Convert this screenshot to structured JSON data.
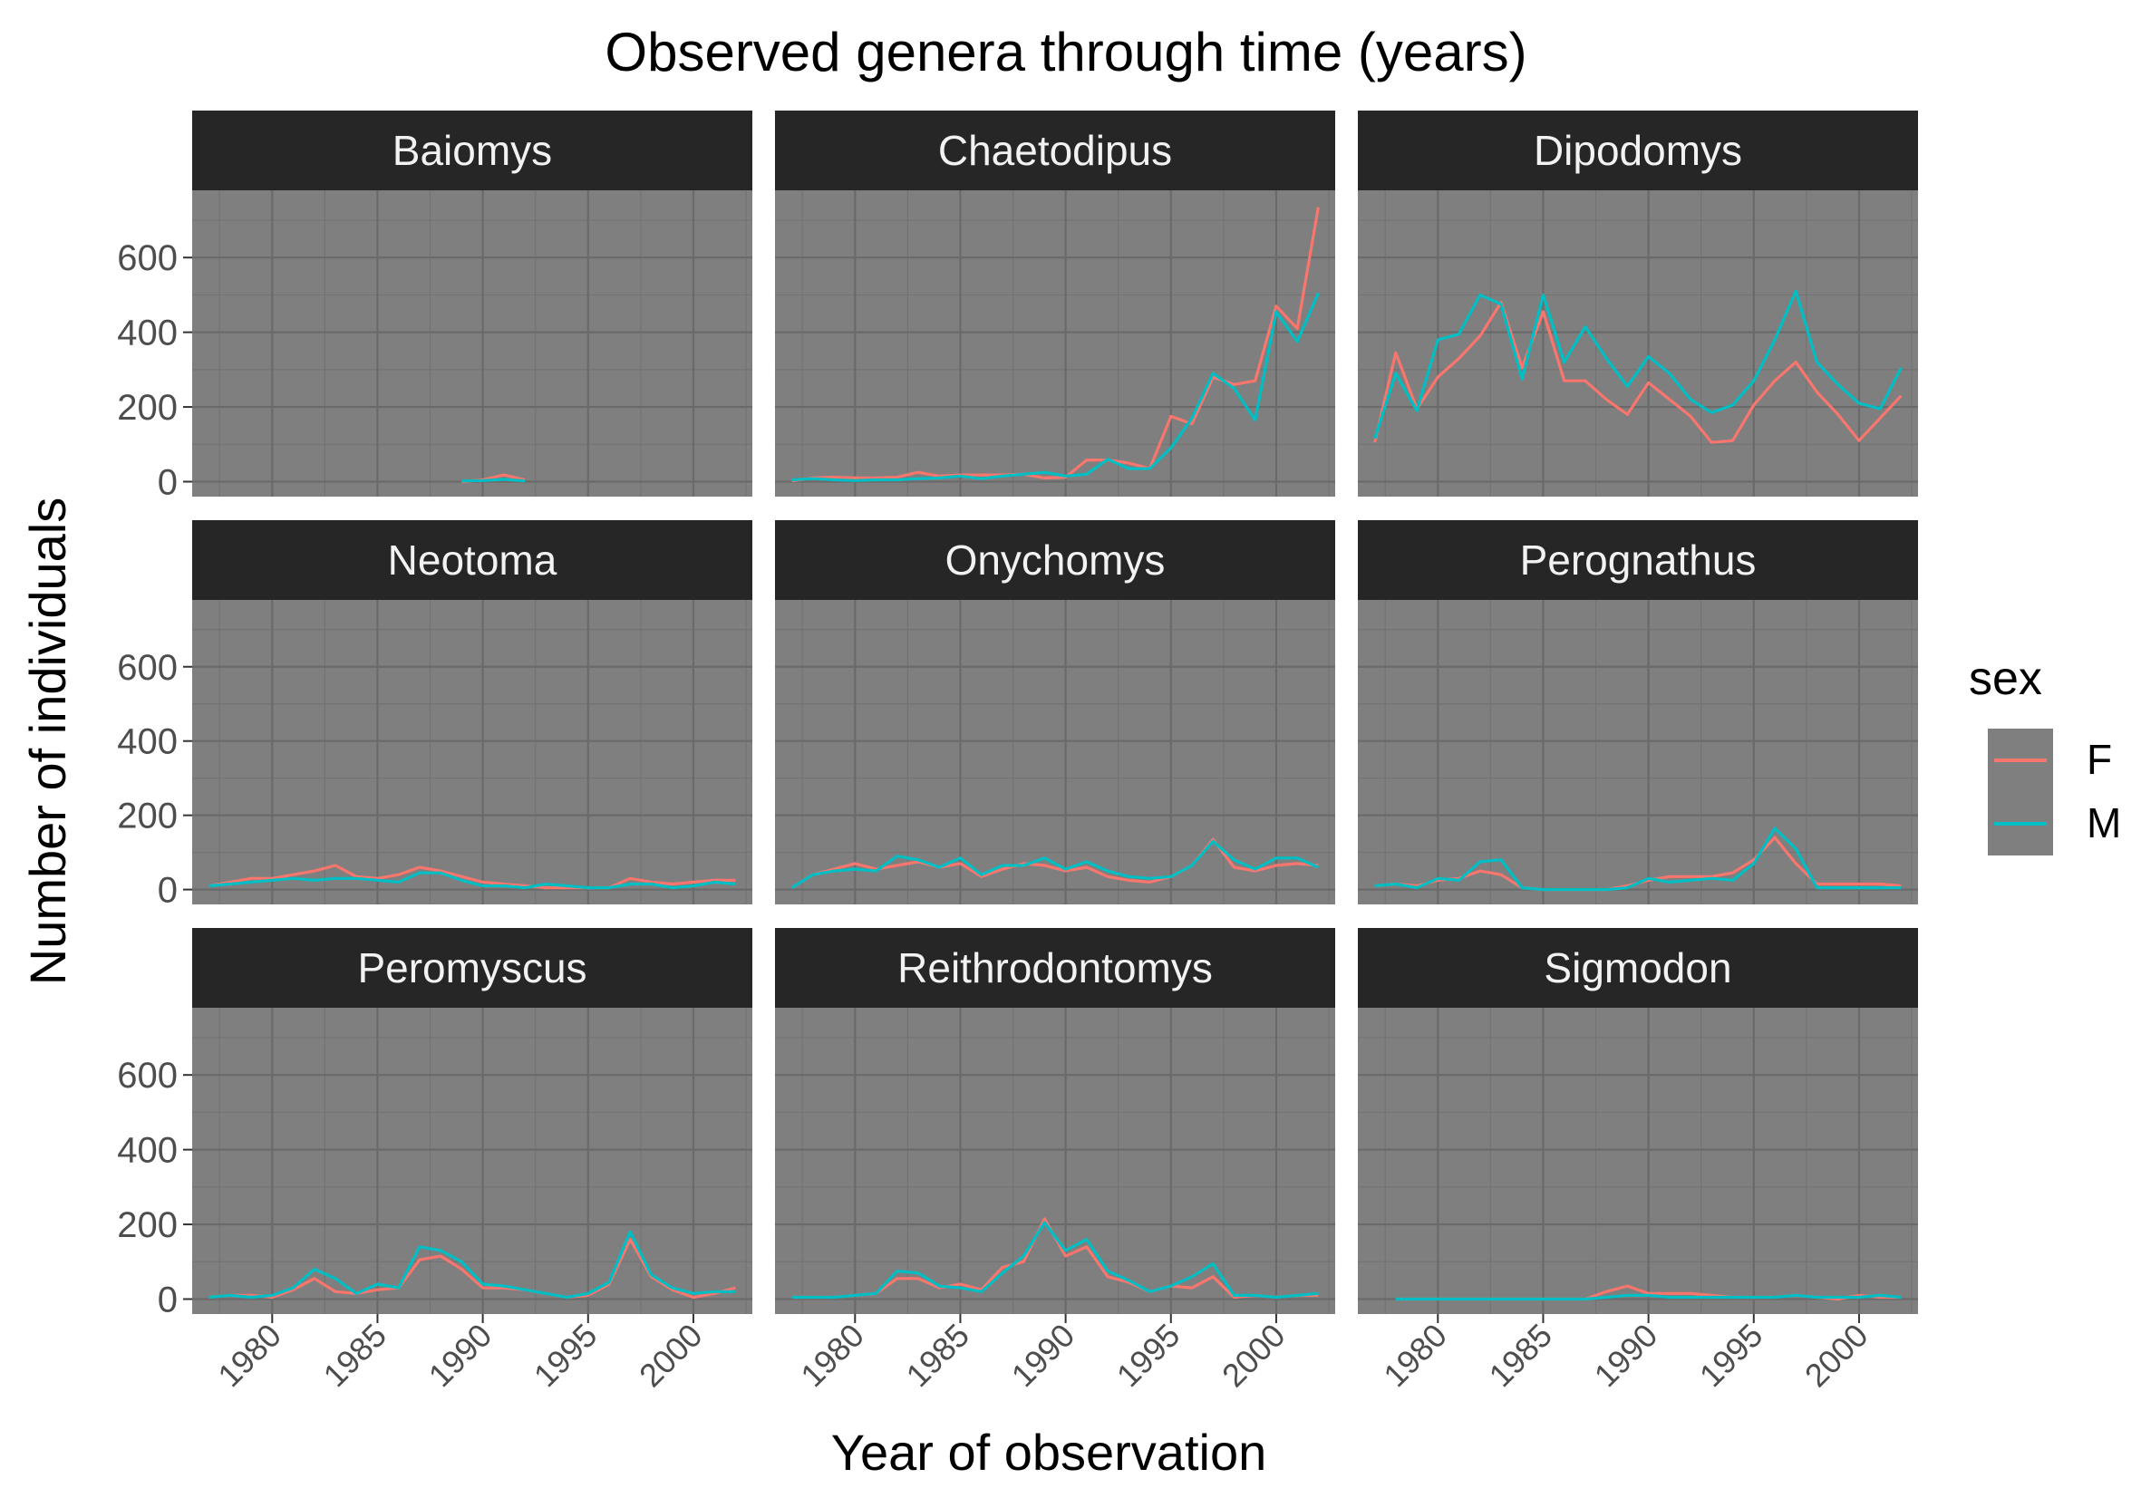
{
  "chart_data": {
    "type": "line",
    "title": "Observed genera through time (years)",
    "xlabel": "Year of observation",
    "ylabel": "Number of individuals",
    "xlim": [
      1976.2,
      2002.8
    ],
    "ylim": [
      -40,
      780
    ],
    "x_ticks": [
      1980,
      1985,
      1990,
      1995,
      2000
    ],
    "y_ticks": [
      0,
      200,
      400,
      600
    ],
    "grid": true,
    "panel_background": "#7f7f7f",
    "strip_background": "#262626",
    "legend": {
      "title": "sex",
      "position": "right",
      "entries": [
        {
          "label": "F",
          "color": "#F8766D"
        },
        {
          "label": "M",
          "color": "#00BFC4"
        }
      ]
    },
    "facets": [
      {
        "name": "Baiomys",
        "series": [
          {
            "sex": "F",
            "x": [
              1989,
              1990,
              1991,
              1992
            ],
            "y": [
              0,
              5,
              18,
              5
            ]
          },
          {
            "sex": "M",
            "x": [
              1989,
              1990,
              1991,
              1992
            ],
            "y": [
              2,
              3,
              6,
              2
            ]
          }
        ]
      },
      {
        "name": "Chaetodipus",
        "series": [
          {
            "sex": "F",
            "x": [
              1977,
              1978,
              1979,
              1980,
              1981,
              1982,
              1983,
              1984,
              1985,
              1986,
              1987,
              1988,
              1989,
              1990,
              1991,
              1992,
              1993,
              1994,
              1995,
              1996,
              1997,
              1998,
              1999,
              2000,
              2001,
              2002
            ],
            "y": [
              2,
              10,
              12,
              10,
              10,
              12,
              25,
              15,
              18,
              18,
              18,
              20,
              10,
              12,
              58,
              58,
              50,
              35,
              175,
              155,
              280,
              260,
              270,
              470,
              410,
              735
            ]
          },
          {
            "sex": "M",
            "x": [
              1977,
              1978,
              1979,
              1980,
              1981,
              1982,
              1983,
              1984,
              1985,
              1986,
              1987,
              1988,
              1989,
              1990,
              1991,
              1992,
              1993,
              1994,
              1995,
              1996,
              1997,
              1998,
              1999,
              2000,
              2001,
              2002
            ],
            "y": [
              5,
              8,
              5,
              3,
              5,
              5,
              8,
              10,
              15,
              8,
              15,
              20,
              25,
              15,
              20,
              60,
              35,
              35,
              90,
              170,
              290,
              250,
              165,
              455,
              375,
              505
            ]
          }
        ]
      },
      {
        "name": "Dipodomys",
        "series": [
          {
            "sex": "F",
            "x": [
              1977,
              1978,
              1979,
              1980,
              1981,
              1982,
              1983,
              1984,
              1985,
              1986,
              1987,
              1988,
              1989,
              1990,
              1991,
              1992,
              1993,
              1994,
              1995,
              1996,
              1997,
              1998,
              1999,
              2000,
              2001,
              2002
            ],
            "y": [
              105,
              345,
              195,
              280,
              330,
              390,
              480,
              305,
              455,
              270,
              270,
              220,
              180,
              265,
              220,
              175,
              105,
              110,
              205,
              270,
              320,
              240,
              180,
              110,
              170,
              230
            ]
          },
          {
            "sex": "M",
            "x": [
              1977,
              1978,
              1979,
              1980,
              1981,
              1982,
              1983,
              1984,
              1985,
              1986,
              1987,
              1988,
              1989,
              1990,
              1991,
              1992,
              1993,
              1994,
              1995,
              1996,
              1997,
              1998,
              1999,
              2000,
              2001,
              2002
            ],
            "y": [
              115,
              290,
              190,
              380,
              395,
              500,
              475,
              275,
              500,
              320,
              415,
              330,
              255,
              335,
              290,
              220,
              185,
              205,
              270,
              380,
              510,
              320,
              260,
              210,
              195,
              305
            ]
          }
        ]
      },
      {
        "name": "Neotoma",
        "series": [
          {
            "sex": "F",
            "x": [
              1977,
              1978,
              1979,
              1980,
              1981,
              1982,
              1983,
              1984,
              1985,
              1986,
              1987,
              1988,
              1989,
              1990,
              1991,
              1992,
              1993,
              1994,
              1995,
              1996,
              1997,
              1998,
              1999,
              2000,
              2001,
              2002
            ],
            "y": [
              10,
              20,
              30,
              30,
              40,
              50,
              65,
              35,
              30,
              40,
              60,
              50,
              35,
              20,
              15,
              10,
              5,
              5,
              5,
              5,
              30,
              20,
              15,
              20,
              25,
              25
            ]
          },
          {
            "sex": "M",
            "x": [
              1977,
              1978,
              1979,
              1980,
              1981,
              1982,
              1983,
              1984,
              1985,
              1986,
              1987,
              1988,
              1989,
              1990,
              1991,
              1992,
              1993,
              1994,
              1995,
              1996,
              1997,
              1998,
              1999,
              2000,
              2001,
              2002
            ],
            "y": [
              10,
              15,
              20,
              25,
              30,
              25,
              30,
              30,
              25,
              20,
              45,
              45,
              25,
              10,
              10,
              5,
              15,
              10,
              5,
              5,
              15,
              15,
              5,
              10,
              20,
              15
            ]
          }
        ]
      },
      {
        "name": "Onychomys",
        "series": [
          {
            "sex": "F",
            "x": [
              1977,
              1978,
              1979,
              1980,
              1981,
              1982,
              1983,
              1984,
              1985,
              1986,
              1987,
              1988,
              1989,
              1990,
              1991,
              1992,
              1993,
              1994,
              1995,
              1996,
              1997,
              1998,
              1999,
              2000,
              2001,
              2002
            ],
            "y": [
              5,
              40,
              55,
              70,
              55,
              65,
              75,
              60,
              70,
              35,
              55,
              70,
              65,
              50,
              60,
              35,
              25,
              20,
              35,
              65,
              135,
              60,
              50,
              65,
              70,
              65
            ]
          },
          {
            "sex": "M",
            "x": [
              1977,
              1978,
              1979,
              1980,
              1981,
              1982,
              1983,
              1984,
              1985,
              1986,
              1987,
              1988,
              1989,
              1990,
              1991,
              1992,
              1993,
              1994,
              1995,
              1996,
              1997,
              1998,
              1999,
              2000,
              2001,
              2002
            ],
            "y": [
              5,
              40,
              50,
              55,
              50,
              90,
              80,
              60,
              85,
              40,
              65,
              65,
              85,
              55,
              75,
              50,
              35,
              30,
              35,
              65,
              130,
              80,
              55,
              85,
              85,
              60
            ]
          }
        ]
      },
      {
        "name": "Perognathus",
        "series": [
          {
            "sex": "F",
            "x": [
              1977,
              1978,
              1979,
              1980,
              1981,
              1982,
              1983,
              1984,
              1985,
              1986,
              1987,
              1988,
              1989,
              1990,
              1991,
              1992,
              1993,
              1994,
              1995,
              1996,
              1997,
              1998,
              1999,
              2000,
              2001,
              2002
            ],
            "y": [
              10,
              15,
              10,
              25,
              30,
              50,
              40,
              5,
              0,
              0,
              0,
              0,
              10,
              25,
              35,
              35,
              35,
              45,
              80,
              140,
              70,
              15,
              15,
              15,
              15,
              10
            ]
          },
          {
            "sex": "M",
            "x": [
              1977,
              1978,
              1979,
              1980,
              1981,
              1982,
              1983,
              1984,
              1985,
              1986,
              1987,
              1988,
              1989,
              1990,
              1991,
              1992,
              1993,
              1994,
              1995,
              1996,
              1997,
              1998,
              1999,
              2000,
              2001,
              2002
            ],
            "y": [
              10,
              15,
              5,
              30,
              25,
              75,
              80,
              5,
              0,
              0,
              0,
              0,
              5,
              30,
              20,
              25,
              30,
              25,
              70,
              165,
              110,
              5,
              5,
              5,
              5,
              5
            ]
          }
        ]
      },
      {
        "name": "Peromyscus",
        "series": [
          {
            "sex": "F",
            "x": [
              1977,
              1978,
              1979,
              1980,
              1981,
              1982,
              1983,
              1984,
              1985,
              1986,
              1987,
              1988,
              1989,
              1990,
              1991,
              1992,
              1993,
              1994,
              1995,
              1996,
              1997,
              1998,
              1999,
              2000,
              2001,
              2002
            ],
            "y": [
              5,
              10,
              10,
              5,
              25,
              55,
              20,
              15,
              25,
              30,
              105,
              115,
              80,
              30,
              30,
              25,
              15,
              5,
              10,
              40,
              160,
              60,
              25,
              5,
              15,
              30
            ]
          },
          {
            "sex": "M",
            "x": [
              1977,
              1978,
              1979,
              1980,
              1981,
              1982,
              1983,
              1984,
              1985,
              1986,
              1987,
              1988,
              1989,
              1990,
              1991,
              1992,
              1993,
              1994,
              1995,
              1996,
              1997,
              1998,
              1999,
              2000,
              2001,
              2002
            ],
            "y": [
              5,
              10,
              5,
              10,
              30,
              80,
              55,
              15,
              40,
              30,
              140,
              130,
              100,
              40,
              35,
              25,
              15,
              5,
              15,
              45,
              180,
              65,
              30,
              15,
              20,
              20
            ]
          }
        ]
      },
      {
        "name": "Reithrodontomys",
        "series": [
          {
            "sex": "F",
            "x": [
              1977,
              1978,
              1979,
              1980,
              1981,
              1982,
              1983,
              1984,
              1985,
              1986,
              1987,
              1988,
              1989,
              1990,
              1991,
              1992,
              1993,
              1994,
              1995,
              1996,
              1997,
              1998,
              1999,
              2000,
              2001,
              2002
            ],
            "y": [
              5,
              5,
              5,
              10,
              15,
              55,
              55,
              30,
              40,
              25,
              85,
              100,
              215,
              115,
              140,
              60,
              45,
              20,
              35,
              30,
              60,
              5,
              10,
              5,
              10,
              10
            ]
          },
          {
            "sex": "M",
            "x": [
              1977,
              1978,
              1979,
              1980,
              1981,
              1982,
              1983,
              1984,
              1985,
              1986,
              1987,
              1988,
              1989,
              1990,
              1991,
              1992,
              1993,
              1994,
              1995,
              1996,
              1997,
              1998,
              1999,
              2000,
              2001,
              2002
            ],
            "y": [
              5,
              5,
              5,
              10,
              15,
              75,
              70,
              35,
              30,
              20,
              70,
              115,
              205,
              130,
              160,
              75,
              50,
              20,
              35,
              60,
              95,
              10,
              10,
              5,
              10,
              15
            ]
          }
        ]
      },
      {
        "name": "Sigmodon",
        "series": [
          {
            "sex": "F",
            "x": [
              1978,
              1979,
              1980,
              1981,
              1982,
              1983,
              1984,
              1985,
              1986,
              1987,
              1988,
              1989,
              1990,
              1991,
              1992,
              1993,
              1994,
              1995,
              1996,
              1997,
              1998,
              1999,
              2000,
              2001,
              2002
            ],
            "y": [
              0,
              0,
              0,
              0,
              0,
              0,
              0,
              0,
              0,
              0,
              20,
              35,
              15,
              15,
              15,
              10,
              5,
              5,
              5,
              10,
              5,
              0,
              10,
              5,
              5
            ]
          },
          {
            "sex": "M",
            "x": [
              1978,
              1979,
              1980,
              1981,
              1982,
              1983,
              1984,
              1985,
              1986,
              1987,
              1988,
              1989,
              1990,
              1991,
              1992,
              1993,
              1994,
              1995,
              1996,
              1997,
              1998,
              1999,
              2000,
              2001,
              2002
            ],
            "y": [
              0,
              0,
              0,
              0,
              0,
              0,
              0,
              0,
              0,
              0,
              5,
              10,
              10,
              5,
              5,
              5,
              5,
              5,
              5,
              10,
              5,
              5,
              5,
              10,
              5
            ]
          }
        ]
      }
    ]
  }
}
